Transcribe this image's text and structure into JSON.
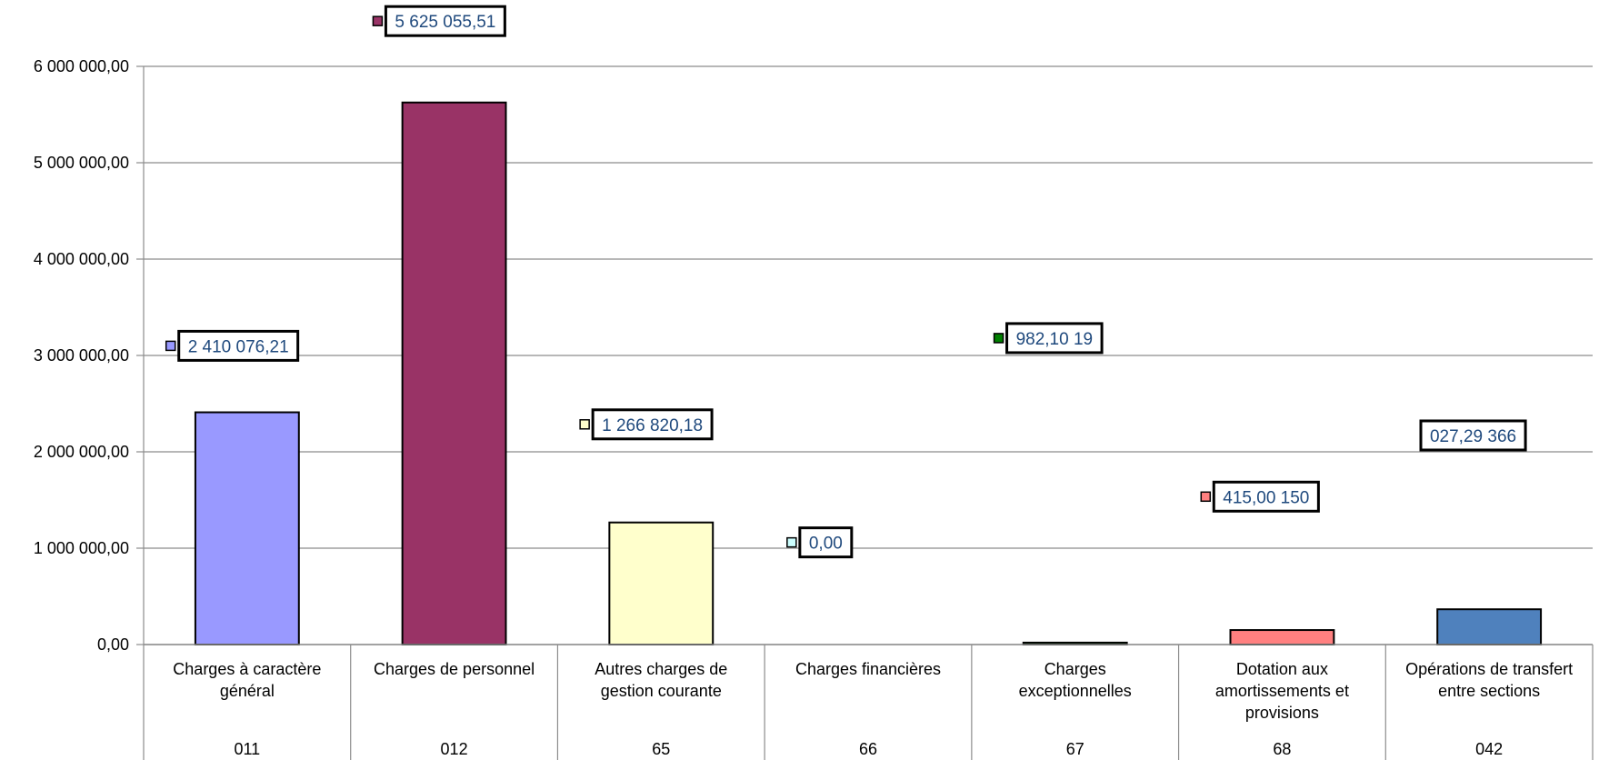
{
  "chart_data": {
    "type": "bar",
    "title": "",
    "xlabel": "",
    "ylabel": "",
    "ylim": [
      0,
      6000000
    ],
    "grid": true,
    "legend": "none",
    "yticks": [
      "0,00",
      "1 000 000,00",
      "2 000 000,00",
      "3 000 000,00",
      "4 000 000,00",
      "5 000 000,00",
      "6 000 000,00"
    ],
    "categories": [
      {
        "name_lines": [
          "Charges à caractère",
          "général"
        ],
        "code": "011",
        "value": 2410076.21,
        "label": "2 410 076,21",
        "color": "#9999ff",
        "label_y": 3100000
      },
      {
        "name_lines": [
          "Charges de personnel"
        ],
        "code": "012",
        "value": 5625055.51,
        "label": "5 625 055,51",
        "color": "#993366",
        "label_y": 6470000
      },
      {
        "name_lines": [
          "Autres charges de",
          "gestion courante"
        ],
        "code": "65",
        "value": 1266820.18,
        "label": "1 266 820,18",
        "color": "#ffffcc",
        "label_y": 2285000
      },
      {
        "name_lines": [
          "Charges financières"
        ],
        "code": "66",
        "value": 0,
        "label": "0,00",
        "color": "#ccffff",
        "label_y": 1060000
      },
      {
        "name_lines": [
          "Charges",
          "exceptionnelles"
        ],
        "code": "67",
        "value": 19982.1,
        "label": "982,10 19",
        "color": "#008000",
        "label_y": 3180000
      },
      {
        "name_lines": [
          "Dotation aux",
          "amortissements et",
          "provisions"
        ],
        "code": "68",
        "value": 150415.0,
        "label": "415,00 150",
        "color": "#ff8080",
        "label_y": 1535000
      },
      {
        "name_lines": [
          "Opérations de transfert",
          "entre sections"
        ],
        "code": "042",
        "value": 366027.29,
        "label": "027,29 366",
        "color": "#4f81bd",
        "label_y": 2170000
      }
    ]
  }
}
